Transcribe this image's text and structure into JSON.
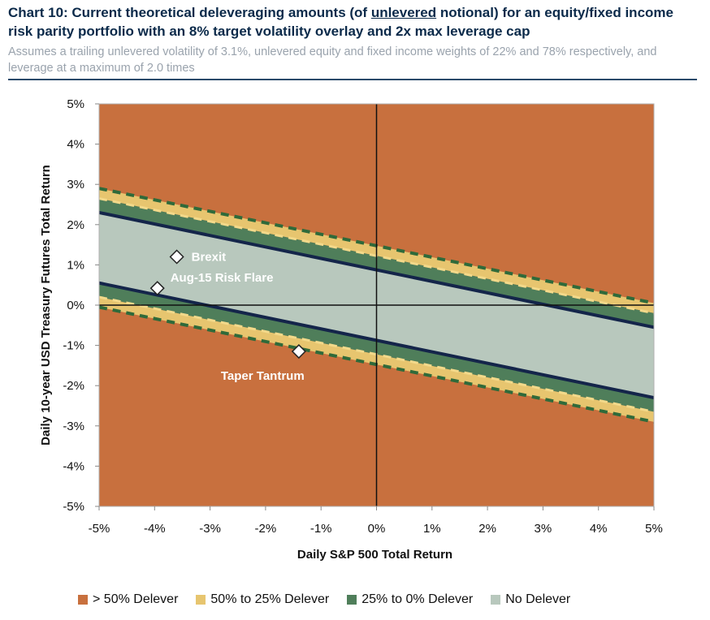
{
  "header": {
    "title_pre": "Chart 10: Current theoretical deleveraging amounts (of ",
    "title_underlined": "unlevered",
    "title_post": " notional) for an equity/fixed income risk parity portfolio with an 8% target volatility overlay and 2x max leverage cap",
    "subtitle": "Assumes a trailing unlevered volatility of 3.1%, unlevered equity and fixed income weights of 22% and 78% respectively, and leverage at a maximum of 2.0 times"
  },
  "chart_data": {
    "type": "area",
    "xlabel": "Daily S&P 500 Total Return",
    "ylabel": "Daily 10-year USD Treasury Futures Total Return",
    "xlim": [
      -5,
      5
    ],
    "ylim": [
      -5,
      5
    ],
    "x_ticks": [
      "-5%",
      "-4%",
      "-3%",
      "-2%",
      "-1%",
      "0%",
      "1%",
      "2%",
      "3%",
      "4%",
      "5%"
    ],
    "y_ticks": [
      "5%",
      "4%",
      "3%",
      "2%",
      "1%",
      "0%",
      "-1%",
      "-2%",
      "-3%",
      "-4%",
      "-5%"
    ],
    "boundary_lines": [
      {
        "kind": "dashed-outer",
        "x": [
          -5,
          5
        ],
        "y": [
          2.9,
          0.05
        ]
      },
      {
        "kind": "dashed-mid",
        "x": [
          -5,
          5
        ],
        "y": [
          2.65,
          -0.2
        ]
      },
      {
        "kind": "solid",
        "x": [
          -5,
          5
        ],
        "y": [
          2.3,
          -0.55
        ]
      },
      {
        "kind": "solid",
        "x": [
          -5,
          5
        ],
        "y": [
          0.55,
          -2.3
        ]
      },
      {
        "kind": "dashed-mid",
        "x": [
          -5,
          5
        ],
        "y": [
          0.2,
          -2.65
        ]
      },
      {
        "kind": "dashed-outer",
        "x": [
          -5,
          5
        ],
        "y": [
          -0.05,
          -2.9
        ]
      }
    ],
    "points": [
      {
        "label": "Brexit",
        "x": -3.6,
        "y": 1.2
      },
      {
        "label": "Aug-15 Risk Flare",
        "x": -3.95,
        "y": 0.42
      },
      {
        "label": "Taper Tantrum",
        "x": -1.4,
        "y": -1.15
      }
    ],
    "legend": [
      {
        "label": "> 50% Delever",
        "color": "#c8703e"
      },
      {
        "label": "50% to 25% Delever",
        "color": "#e7c56f"
      },
      {
        "label": "25% to 0% Delever",
        "color": "#4f7e5a"
      },
      {
        "label": "No Delever",
        "color": "#b8c8bd"
      }
    ],
    "legend_placement": "bottom",
    "grid": false
  }
}
